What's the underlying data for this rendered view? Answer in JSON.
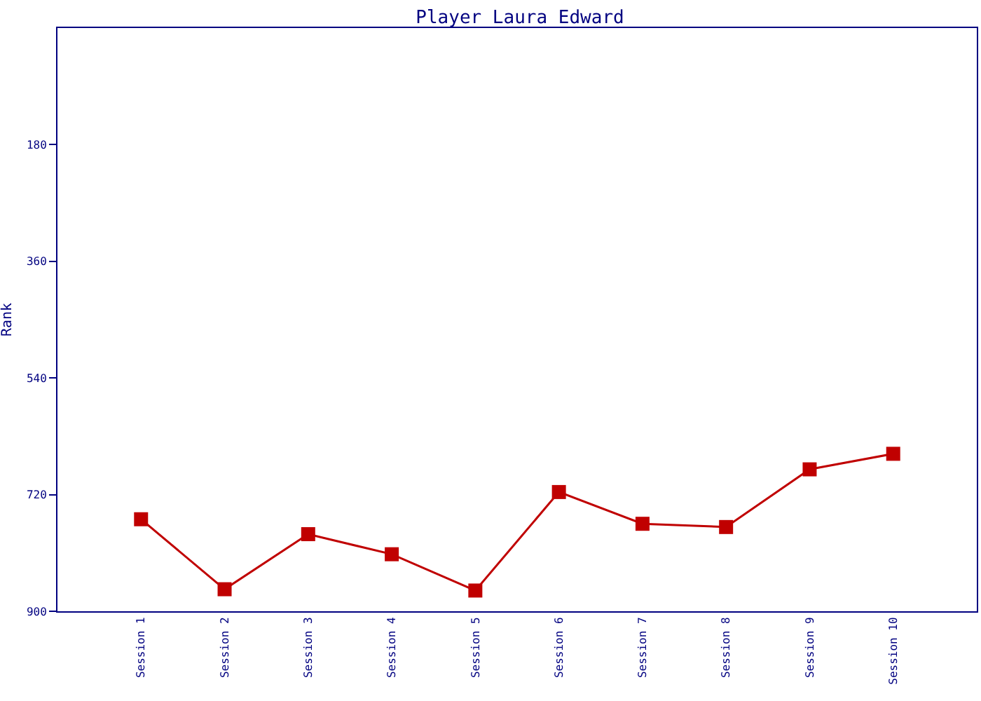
{
  "chart_data": {
    "type": "line",
    "title": "Player Laura Edward",
    "ylabel": "Rank",
    "categories": [
      "Session 1",
      "Session 2",
      "Session 3",
      "Session 4",
      "Session 5",
      "Session 6",
      "Session 7",
      "Session 8",
      "Session 9",
      "Session 10"
    ],
    "series": [
      {
        "color": "#c00000",
        "values": [
          758,
          866,
          781,
          812,
          868,
          716,
          765,
          770,
          681,
          657
        ]
      }
    ],
    "ylim": [
      900,
      0
    ],
    "yticks": [
      180,
      360,
      540,
      720,
      900
    ],
    "marker": "square",
    "line_style": "solid"
  }
}
